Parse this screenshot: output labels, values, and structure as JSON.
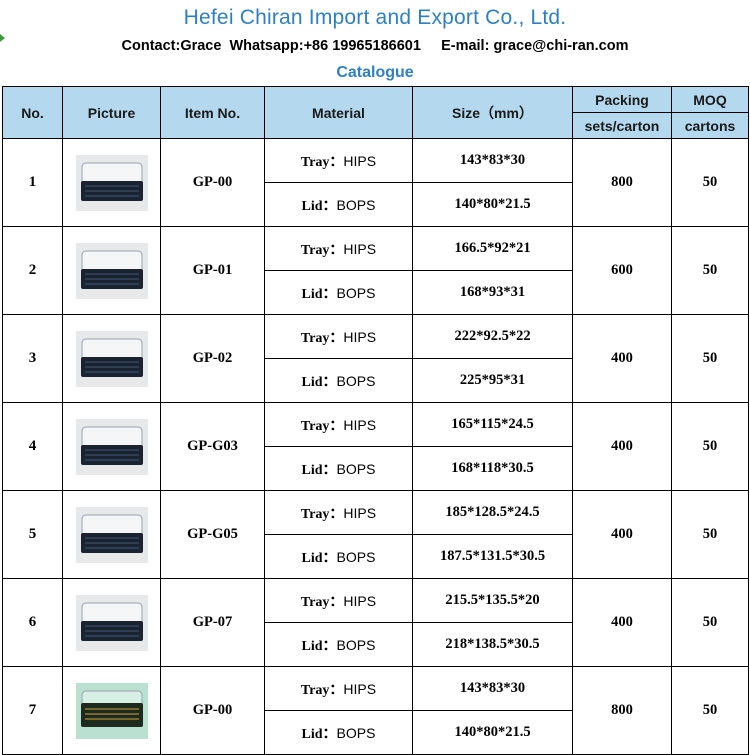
{
  "header": {
    "company": "Hefei Chiran Import and Export Co., Ltd.",
    "contact": "Contact:Grace  Whatsapp:+86 19965186601     E-mail: grace@chi-ran.com",
    "subtitle": "Catalogue"
  },
  "colors": {
    "header_fill": "#b4d8ee",
    "title_blue": "#2f7fc1"
  },
  "table": {
    "columns": {
      "no": "No.",
      "picture": "Picture",
      "item_no": "Item No.",
      "material": "Material",
      "size": "Size（mm）",
      "packing": "Packing",
      "packing_unit": "sets/carton",
      "moq": "MOQ",
      "moq_unit": "cartons"
    },
    "rows": [
      {
        "no": "1",
        "item": "GP-00",
        "tray_label": "Tray：",
        "tray_material": "HIPS",
        "tray_size": "143*83*30",
        "lid_label": "Lid：",
        "lid_material": "BOPS",
        "lid_size": "140*80*21.5",
        "packing": "800",
        "moq": "50",
        "picture": "sushi-tray-photo"
      },
      {
        "no": "2",
        "item": "GP-01",
        "tray_label": "Tray：",
        "tray_material": "HIPS",
        "tray_size": "166.5*92*21",
        "lid_label": "Lid：",
        "lid_material": "BOPS",
        "lid_size": "168*93*31",
        "packing": "600",
        "moq": "50",
        "picture": "sushi-tray-photo"
      },
      {
        "no": "3",
        "item": "GP-02",
        "tray_label": "Tray：",
        "tray_material": "HIPS",
        "tray_size": "222*92.5*22",
        "lid_label": "Lid：",
        "lid_material": "BOPS",
        "lid_size": "225*95*31",
        "packing": "400",
        "moq": "50",
        "picture": "sushi-tray-photo"
      },
      {
        "no": "4",
        "item": "GP-G03",
        "tray_label": "Tray：",
        "tray_material": "HIPS",
        "tray_size": "165*115*24.5",
        "lid_label": "Lid：",
        "lid_material": "BOPS",
        "lid_size": "168*118*30.5",
        "packing": "400",
        "moq": "50",
        "picture": "sushi-tray-photo"
      },
      {
        "no": "5",
        "item": "GP-G05",
        "tray_label": "Tray：",
        "tray_material": "HIPS",
        "tray_size": "185*128.5*24.5",
        "lid_label": "Lid：",
        "lid_material": "BOPS",
        "lid_size": "187.5*131.5*30.5",
        "packing": "400",
        "moq": "50",
        "picture": "sushi-tray-photo"
      },
      {
        "no": "6",
        "item": "GP-07",
        "tray_label": "Tray：",
        "tray_material": "HIPS",
        "tray_size": "215.5*135.5*20",
        "lid_label": "Lid：",
        "lid_material": "BOPS",
        "lid_size": "218*138.5*30.5",
        "packing": "400",
        "moq": "50",
        "picture": "sushi-tray-photo"
      },
      {
        "no": "7",
        "item": "GP-00",
        "tray_label": "Tray：",
        "tray_material": "HIPS",
        "tray_size": "143*83*30",
        "lid_label": "Lid：",
        "lid_material": "BOPS",
        "lid_size": "140*80*21.5",
        "packing": "800",
        "moq": "50",
        "picture": "sushi-tray-photo"
      }
    ]
  }
}
